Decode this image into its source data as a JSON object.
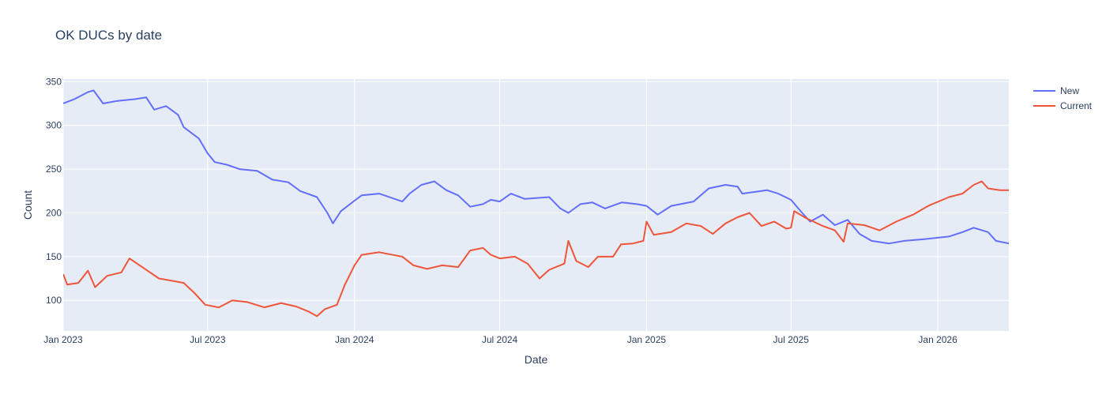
{
  "chart_data": {
    "type": "line",
    "title": "OK DUCs by date",
    "xlabel": "Date",
    "ylabel": "Count",
    "xlim": [
      "2023-01-01",
      "2026-03-31"
    ],
    "ylim": [
      65,
      353
    ],
    "x_ticks": [
      {
        "date": "2023-01-01",
        "label": "Jan 2023"
      },
      {
        "date": "2023-07-01",
        "label": "Jul 2023"
      },
      {
        "date": "2024-01-01",
        "label": "Jan 2024"
      },
      {
        "date": "2024-07-01",
        "label": "Jul 2024"
      },
      {
        "date": "2025-01-01",
        "label": "Jan 2025"
      },
      {
        "date": "2025-07-01",
        "label": "Jul 2025"
      },
      {
        "date": "2026-01-01",
        "label": "Jan 2026"
      }
    ],
    "y_ticks": [
      100,
      150,
      200,
      250,
      300,
      350
    ],
    "grid": true,
    "legend_position": "top-right",
    "background_color": "#e5ecf6",
    "series": [
      {
        "name": "New",
        "color": "#636efa",
        "points": [
          [
            "2023-01-01",
            325
          ],
          [
            "2023-01-15",
            330
          ],
          [
            "2023-02-01",
            338
          ],
          [
            "2023-02-08",
            340
          ],
          [
            "2023-02-20",
            325
          ],
          [
            "2023-03-10",
            328
          ],
          [
            "2023-04-01",
            330
          ],
          [
            "2023-04-15",
            332
          ],
          [
            "2023-04-25",
            318
          ],
          [
            "2023-05-10",
            322
          ],
          [
            "2023-05-25",
            312
          ],
          [
            "2023-06-01",
            298
          ],
          [
            "2023-06-20",
            285
          ],
          [
            "2023-07-01",
            268
          ],
          [
            "2023-07-10",
            258
          ],
          [
            "2023-07-25",
            255
          ],
          [
            "2023-08-10",
            250
          ],
          [
            "2023-09-01",
            248
          ],
          [
            "2023-09-20",
            238
          ],
          [
            "2023-10-10",
            235
          ],
          [
            "2023-10-25",
            225
          ],
          [
            "2023-11-15",
            218
          ],
          [
            "2023-11-28",
            200
          ],
          [
            "2023-12-05",
            188
          ],
          [
            "2023-12-15",
            202
          ],
          [
            "2024-01-01",
            214
          ],
          [
            "2024-01-10",
            220
          ],
          [
            "2024-02-01",
            222
          ],
          [
            "2024-03-01",
            213
          ],
          [
            "2024-03-10",
            222
          ],
          [
            "2024-03-25",
            232
          ],
          [
            "2024-04-10",
            236
          ],
          [
            "2024-04-25",
            226
          ],
          [
            "2024-05-10",
            220
          ],
          [
            "2024-05-25",
            207
          ],
          [
            "2024-06-10",
            210
          ],
          [
            "2024-06-20",
            215
          ],
          [
            "2024-07-01",
            213
          ],
          [
            "2024-07-15",
            222
          ],
          [
            "2024-08-01",
            216
          ],
          [
            "2024-09-01",
            218
          ],
          [
            "2024-09-15",
            205
          ],
          [
            "2024-09-25",
            200
          ],
          [
            "2024-10-10",
            210
          ],
          [
            "2024-10-25",
            212
          ],
          [
            "2024-11-10",
            205
          ],
          [
            "2024-12-01",
            212
          ],
          [
            "2024-12-20",
            210
          ],
          [
            "2025-01-01",
            208
          ],
          [
            "2025-01-15",
            198
          ],
          [
            "2025-02-01",
            208
          ],
          [
            "2025-03-01",
            213
          ],
          [
            "2025-03-20",
            228
          ],
          [
            "2025-04-10",
            232
          ],
          [
            "2025-04-25",
            230
          ],
          [
            "2025-05-01",
            222
          ],
          [
            "2025-06-01",
            226
          ],
          [
            "2025-06-15",
            222
          ],
          [
            "2025-07-01",
            215
          ],
          [
            "2025-07-15",
            200
          ],
          [
            "2025-07-25",
            190
          ],
          [
            "2025-08-10",
            198
          ],
          [
            "2025-08-25",
            186
          ],
          [
            "2025-09-10",
            192
          ],
          [
            "2025-09-25",
            176
          ],
          [
            "2025-10-10",
            168
          ],
          [
            "2025-11-01",
            165
          ],
          [
            "2025-11-20",
            168
          ],
          [
            "2025-12-15",
            170
          ],
          [
            "2026-01-15",
            173
          ],
          [
            "2026-02-01",
            178
          ],
          [
            "2026-02-15",
            183
          ],
          [
            "2026-03-05",
            178
          ],
          [
            "2026-03-15",
            168
          ],
          [
            "2026-03-31",
            165
          ]
        ]
      },
      {
        "name": "Current",
        "color": "#ef553b",
        "points": [
          [
            "2023-01-01",
            130
          ],
          [
            "2023-01-06",
            118
          ],
          [
            "2023-01-20",
            120
          ],
          [
            "2023-02-01",
            134
          ],
          [
            "2023-02-10",
            115
          ],
          [
            "2023-02-25",
            128
          ],
          [
            "2023-03-15",
            132
          ],
          [
            "2023-03-25",
            148
          ],
          [
            "2023-04-10",
            138
          ],
          [
            "2023-05-01",
            125
          ],
          [
            "2023-05-20",
            122
          ],
          [
            "2023-06-01",
            120
          ],
          [
            "2023-06-15",
            108
          ],
          [
            "2023-06-28",
            95
          ],
          [
            "2023-07-15",
            92
          ],
          [
            "2023-08-01",
            100
          ],
          [
            "2023-08-20",
            98
          ],
          [
            "2023-09-10",
            92
          ],
          [
            "2023-10-01",
            97
          ],
          [
            "2023-10-20",
            93
          ],
          [
            "2023-11-05",
            87
          ],
          [
            "2023-11-15",
            82
          ],
          [
            "2023-11-25",
            90
          ],
          [
            "2023-12-10",
            95
          ],
          [
            "2023-12-20",
            118
          ],
          [
            "2024-01-01",
            140
          ],
          [
            "2024-01-10",
            152
          ],
          [
            "2024-02-01",
            155
          ],
          [
            "2024-03-01",
            150
          ],
          [
            "2024-03-15",
            140
          ],
          [
            "2024-04-01",
            136
          ],
          [
            "2024-04-20",
            140
          ],
          [
            "2024-05-10",
            138
          ],
          [
            "2024-05-25",
            157
          ],
          [
            "2024-06-10",
            160
          ],
          [
            "2024-06-20",
            152
          ],
          [
            "2024-07-01",
            148
          ],
          [
            "2024-07-20",
            150
          ],
          [
            "2024-08-05",
            142
          ],
          [
            "2024-08-20",
            125
          ],
          [
            "2024-09-01",
            135
          ],
          [
            "2024-09-20",
            142
          ],
          [
            "2024-09-25",
            168
          ],
          [
            "2024-10-05",
            145
          ],
          [
            "2024-10-20",
            138
          ],
          [
            "2024-11-01",
            150
          ],
          [
            "2024-11-20",
            150
          ],
          [
            "2024-11-30",
            164
          ],
          [
            "2024-12-15",
            165
          ],
          [
            "2024-12-28",
            168
          ],
          [
            "2025-01-01",
            190
          ],
          [
            "2025-01-10",
            175
          ],
          [
            "2025-02-01",
            178
          ],
          [
            "2025-02-20",
            188
          ],
          [
            "2025-03-10",
            185
          ],
          [
            "2025-03-25",
            176
          ],
          [
            "2025-04-10",
            188
          ],
          [
            "2025-04-25",
            195
          ],
          [
            "2025-05-10",
            200
          ],
          [
            "2025-05-25",
            185
          ],
          [
            "2025-06-10",
            190
          ],
          [
            "2025-06-25",
            182
          ],
          [
            "2025-07-01",
            183
          ],
          [
            "2025-07-05",
            202
          ],
          [
            "2025-07-20",
            194
          ],
          [
            "2025-08-10",
            185
          ],
          [
            "2025-08-25",
            180
          ],
          [
            "2025-09-05",
            167
          ],
          [
            "2025-09-10",
            188
          ],
          [
            "2025-10-01",
            186
          ],
          [
            "2025-10-20",
            180
          ],
          [
            "2025-11-10",
            190
          ],
          [
            "2025-12-01",
            198
          ],
          [
            "2025-12-20",
            208
          ],
          [
            "2026-01-15",
            218
          ],
          [
            "2026-02-01",
            222
          ],
          [
            "2026-02-15",
            232
          ],
          [
            "2026-02-25",
            236
          ],
          [
            "2026-03-05",
            228
          ],
          [
            "2026-03-20",
            226
          ],
          [
            "2026-03-31",
            226
          ]
        ]
      }
    ]
  }
}
